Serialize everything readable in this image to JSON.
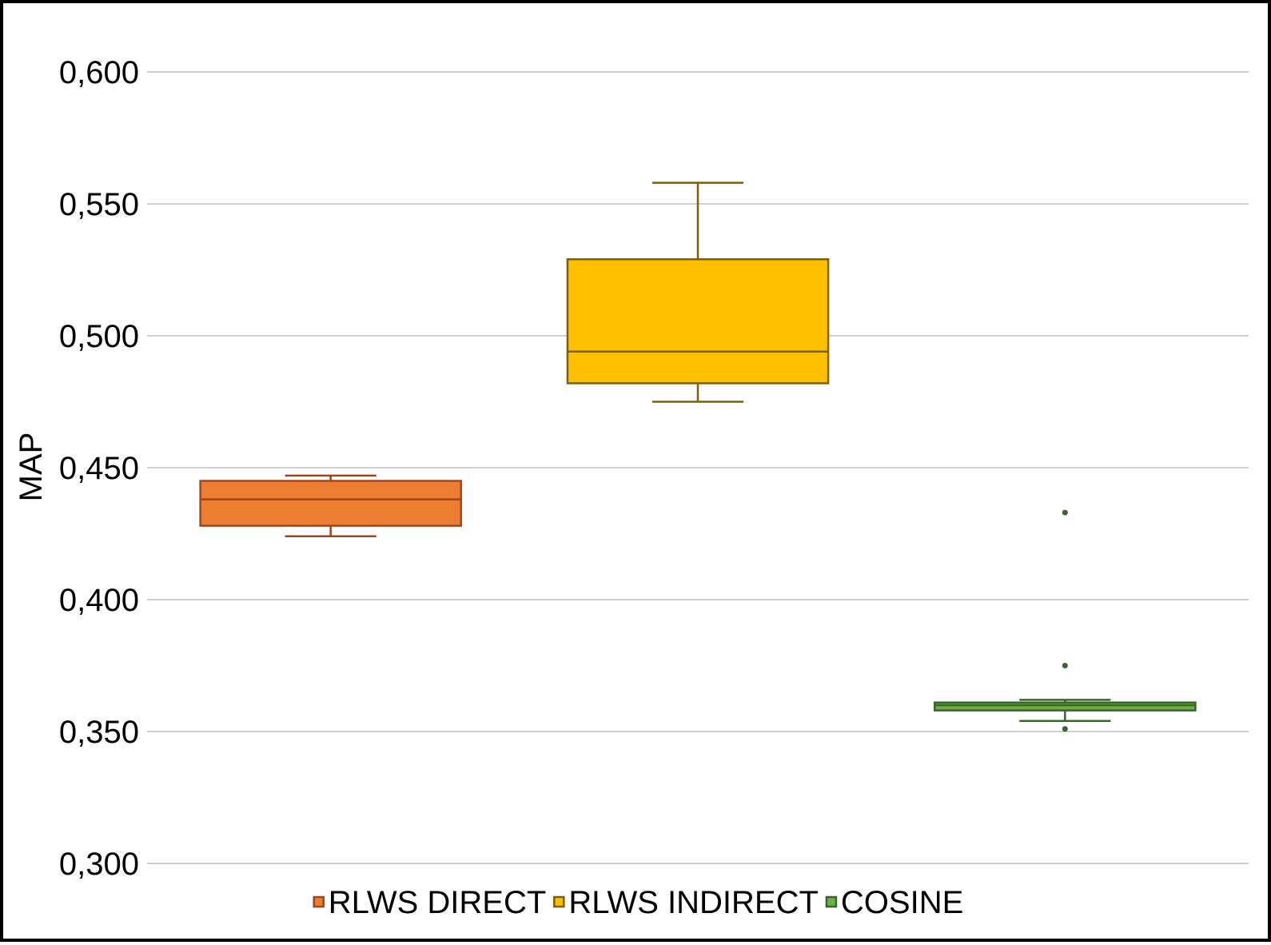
{
  "chart_data": {
    "type": "box",
    "title": "",
    "xlabel": "",
    "ylabel": "MAP",
    "ylim": [
      0.3,
      0.6
    ],
    "yticks": [
      0.3,
      0.35,
      0.4,
      0.45,
      0.5,
      0.55,
      0.6
    ],
    "ytick_labels": [
      "0,300",
      "0,350",
      "0,400",
      "0,450",
      "0,500",
      "0,550",
      "0,600"
    ],
    "grid": true,
    "legend_position": "bottom",
    "series": [
      {
        "name": "RLWS DIRECT",
        "fill": "#ed7d31",
        "stroke": "#a0461d",
        "min": 0.424,
        "q1": 0.428,
        "median": 0.438,
        "q3": 0.445,
        "max": 0.447,
        "outliers": []
      },
      {
        "name": "RLWS INDIRECT",
        "fill": "#ffc000",
        "stroke": "#7f6000",
        "min": 0.475,
        "q1": 0.482,
        "median": 0.494,
        "q3": 0.529,
        "max": 0.558,
        "outliers": []
      },
      {
        "name": "COSINE",
        "fill": "#70ad47",
        "stroke": "#38652a",
        "min": 0.354,
        "q1": 0.358,
        "median": 0.36,
        "q3": 0.361,
        "max": 0.362,
        "outliers": [
          0.433,
          0.375,
          0.351
        ]
      }
    ]
  }
}
